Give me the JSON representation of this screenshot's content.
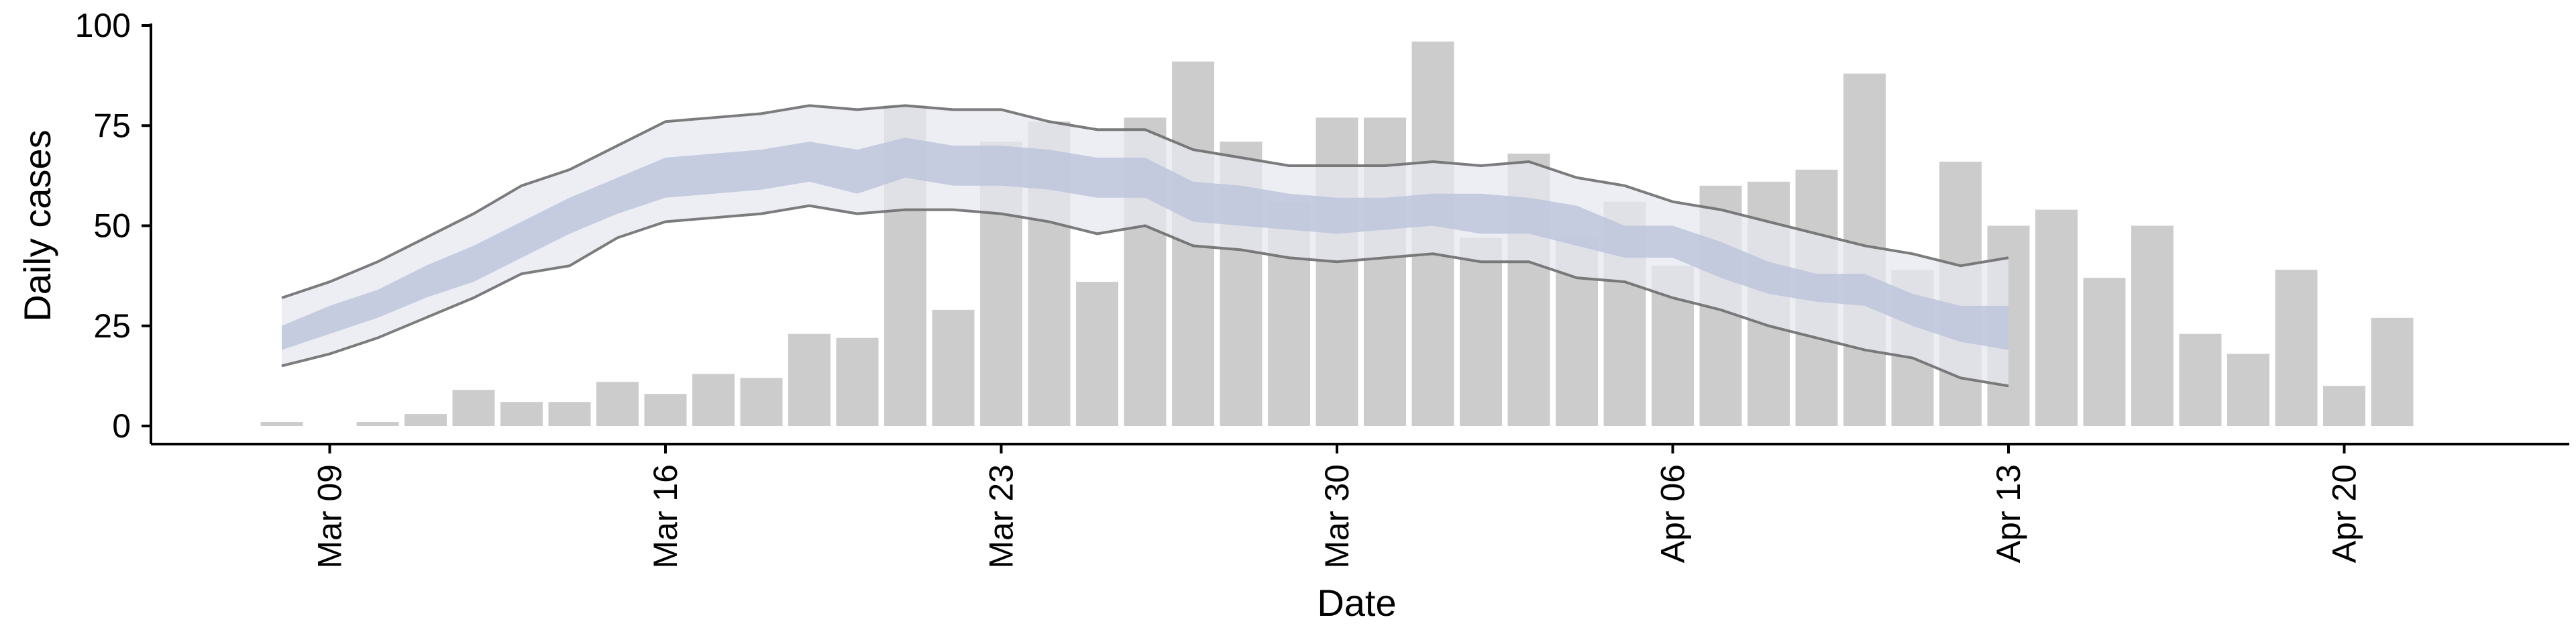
{
  "chart_data": {
    "type": "bar",
    "xlabel": "Date",
    "ylabel": "Daily cases",
    "ylim": [
      0,
      100
    ],
    "yticks": [
      0,
      25,
      50,
      75,
      100
    ],
    "xticks": [
      "Mar 09",
      "Mar 16",
      "Mar 23",
      "Mar 30",
      "Apr 06",
      "Apr 13",
      "Apr 20"
    ],
    "grid": false,
    "legend": "none",
    "bar_color": "#cccccc",
    "band_outer_color": "#e6e8f0",
    "band_inner_color": "#bfc6dc",
    "band_line_color": "#6e6e6e",
    "categories": [
      "Mar 08",
      "Mar 09",
      "Mar 10",
      "Mar 11",
      "Mar 12",
      "Mar 13",
      "Mar 14",
      "Mar 15",
      "Mar 16",
      "Mar 17",
      "Mar 18",
      "Mar 19",
      "Mar 20",
      "Mar 21",
      "Mar 22",
      "Mar 23",
      "Mar 24",
      "Mar 25",
      "Mar 26",
      "Mar 27",
      "Mar 28",
      "Mar 29",
      "Mar 30",
      "Mar 31",
      "Apr 01",
      "Apr 02",
      "Apr 03",
      "Apr 04",
      "Apr 05",
      "Apr 06",
      "Apr 07",
      "Apr 08",
      "Apr 09",
      "Apr 10",
      "Apr 11",
      "Apr 12",
      "Apr 13",
      "Apr 14",
      "Apr 15",
      "Apr 16",
      "Apr 17",
      "Apr 18",
      "Apr 19",
      "Apr 20",
      "Apr 21",
      "Apr 22"
    ],
    "values": [
      1,
      0,
      1,
      3,
      9,
      6,
      6,
      11,
      8,
      13,
      12,
      23,
      22,
      80,
      29,
      71,
      76,
      36,
      77,
      91,
      71,
      56,
      77,
      77,
      96,
      47,
      68,
      47,
      56,
      40,
      60,
      61,
      64,
      88,
      39,
      66,
      50,
      54,
      37,
      50,
      23,
      18,
      39,
      10,
      27,
      0
    ],
    "band": {
      "x": [
        "Mar 08",
        "Mar 09",
        "Mar 10",
        "Mar 11",
        "Mar 12",
        "Mar 13",
        "Mar 14",
        "Mar 15",
        "Mar 16",
        "Mar 17",
        "Mar 18",
        "Mar 19",
        "Mar 20",
        "Mar 21",
        "Mar 22",
        "Mar 23",
        "Mar 24",
        "Mar 25",
        "Mar 26",
        "Mar 27",
        "Mar 28",
        "Mar 29",
        "Mar 30",
        "Mar 31",
        "Apr 01",
        "Apr 02",
        "Apr 03",
        "Apr 04",
        "Apr 05",
        "Apr 06",
        "Apr 07",
        "Apr 08",
        "Apr 09",
        "Apr 10",
        "Apr 11",
        "Apr 12",
        "Apr 13"
      ],
      "lower_outer": [
        15,
        18,
        22,
        27,
        32,
        38,
        40,
        47,
        51,
        52,
        53,
        55,
        53,
        54,
        54,
        53,
        51,
        48,
        50,
        45,
        44,
        42,
        41,
        42,
        43,
        41,
        41,
        37,
        36,
        32,
        29,
        25,
        22,
        19,
        17,
        12,
        10
      ],
      "lower_inner": [
        19,
        23,
        27,
        32,
        36,
        42,
        48,
        53,
        57,
        58,
        59,
        61,
        58,
        62,
        60,
        60,
        59,
        57,
        57,
        51,
        50,
        49,
        48,
        49,
        50,
        48,
        48,
        45,
        42,
        42,
        37,
        33,
        31,
        30,
        25,
        21,
        19
      ],
      "upper_inner": [
        25,
        30,
        34,
        40,
        45,
        51,
        57,
        62,
        67,
        68,
        69,
        71,
        69,
        72,
        70,
        70,
        69,
        67,
        67,
        61,
        60,
        58,
        57,
        57,
        58,
        58,
        57,
        55,
        50,
        50,
        46,
        41,
        38,
        38,
        33,
        30,
        30
      ],
      "upper_outer": [
        32,
        36,
        41,
        47,
        53,
        60,
        64,
        70,
        76,
        77,
        78,
        80,
        79,
        80,
        79,
        79,
        76,
        74,
        74,
        69,
        67,
        65,
        65,
        65,
        66,
        65,
        66,
        62,
        60,
        56,
        54,
        51,
        48,
        45,
        43,
        40,
        42
      ]
    }
  }
}
